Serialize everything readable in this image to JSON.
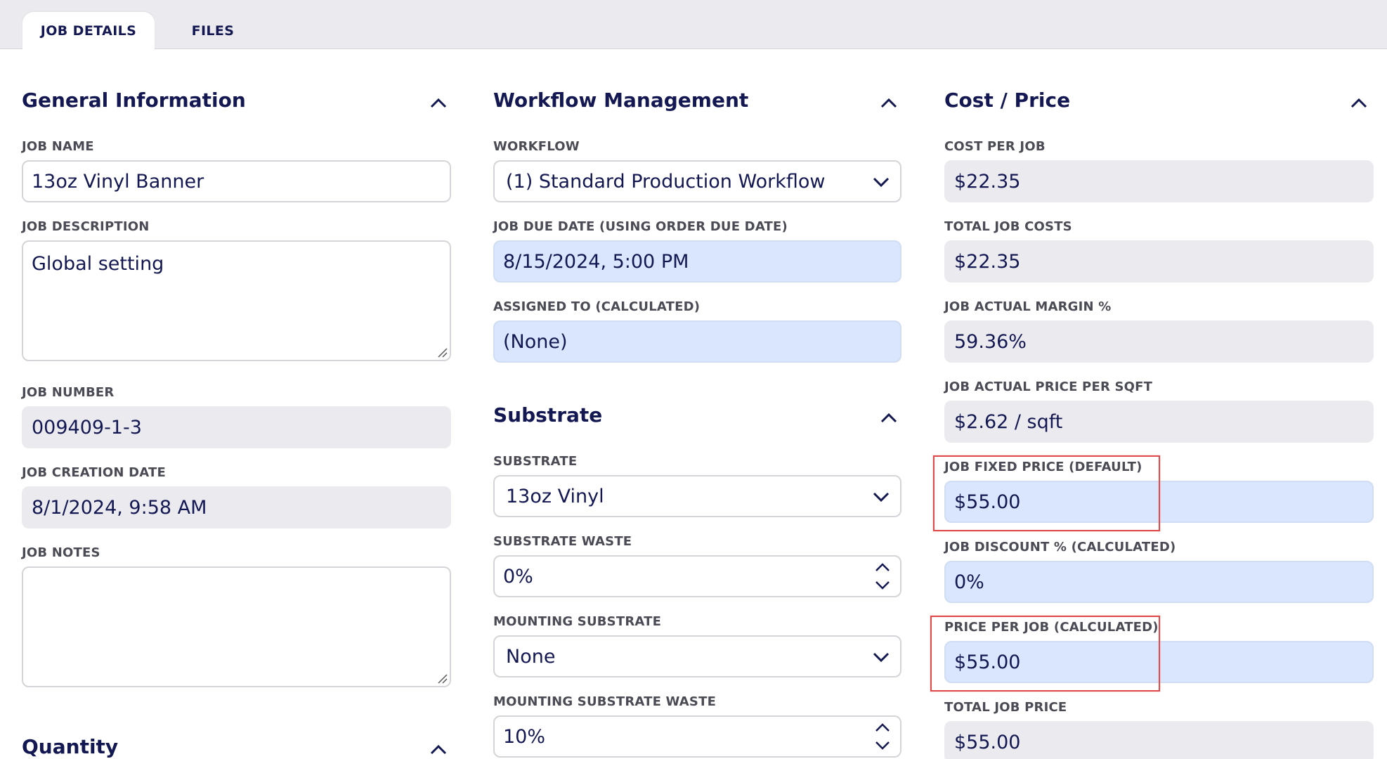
{
  "tabs": [
    {
      "label": "JOB DETAILS",
      "active": true
    },
    {
      "label": "FILES",
      "active": false
    }
  ],
  "general": {
    "title": "General Information",
    "job_name_label": "JOB NAME",
    "job_name_value": "13oz Vinyl Banner",
    "job_description_label": "JOB DESCRIPTION",
    "job_description_value": "Global setting",
    "job_number_label": "JOB NUMBER",
    "job_number_value": "009409-1-3",
    "job_creation_date_label": "JOB CREATION DATE",
    "job_creation_date_value": "8/1/2024, 9:58 AM",
    "job_notes_label": "JOB NOTES",
    "job_notes_value": ""
  },
  "quantity": {
    "title": "Quantity"
  },
  "workflow": {
    "title": "Workflow Management",
    "workflow_label": "WORKFLOW",
    "workflow_value": "(1) Standard Production Workflow",
    "due_date_label": "JOB DUE DATE (USING ORDER DUE DATE)",
    "due_date_value": "8/15/2024, 5:00 PM",
    "assigned_label": "ASSIGNED TO (CALCULATED)",
    "assigned_value": "(None)"
  },
  "substrate": {
    "title": "Substrate",
    "substrate_label": "SUBSTRATE",
    "substrate_value": "13oz Vinyl",
    "waste_label": "SUBSTRATE WASTE",
    "waste_value": "0%",
    "mounting_label": "MOUNTING SUBSTRATE",
    "mounting_value": "None",
    "mounting_waste_label": "MOUNTING SUBSTRATE WASTE",
    "mounting_waste_value": "10%"
  },
  "cost": {
    "title": "Cost / Price",
    "cost_per_job_label": "COST PER JOB",
    "cost_per_job_value": "$22.35",
    "total_job_costs_label": "TOTAL JOB COSTS",
    "total_job_costs_value": "$22.35",
    "actual_margin_label": "JOB ACTUAL MARGIN %",
    "actual_margin_value": "59.36%",
    "actual_price_sqft_label": "JOB ACTUAL PRICE PER SQFT",
    "actual_price_sqft_value": "$2.62 / sqft",
    "fixed_price_label": "JOB FIXED PRICE (DEFAULT)",
    "fixed_price_value": "$55.00",
    "discount_label": "JOB DISCOUNT % (CALCULATED)",
    "discount_value": "0%",
    "price_per_job_label": "PRICE PER JOB (CALCULATED)",
    "price_per_job_value": "$55.00",
    "total_job_price_label": "TOTAL JOB PRICE",
    "total_job_price_value": "$55.00"
  },
  "colors": {
    "primary_text": "#141852",
    "calculated_bg": "#d9e6fd",
    "readonly_bg": "#ebebef",
    "highlight": "#e04a4a"
  },
  "icons": [
    "chevron-up-icon",
    "chevron-down-icon",
    "resize-handle-icon",
    "spinner-icon"
  ]
}
